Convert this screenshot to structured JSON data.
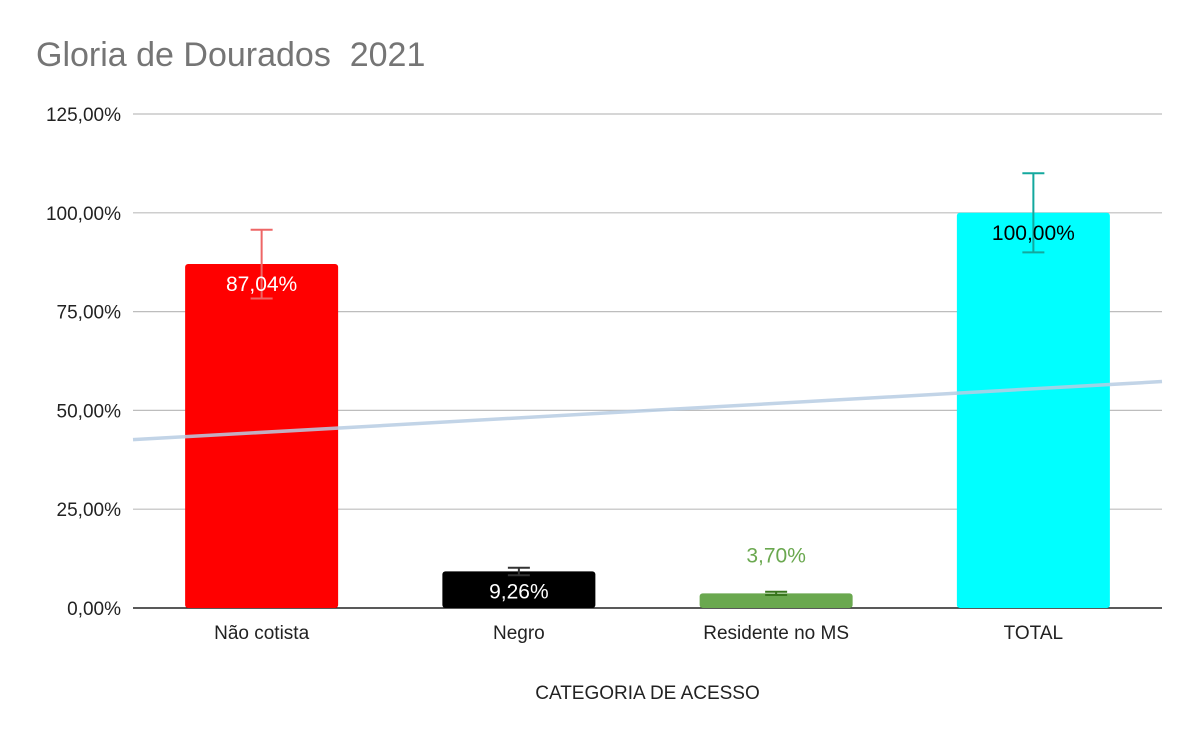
{
  "chart_data": {
    "type": "bar",
    "title": "Gloria de Dourados  2021",
    "xlabel": "CATEGORIA DE ACESSO",
    "ylabel": "",
    "categories": [
      "Não cotista",
      "Negro",
      "Residente no MS",
      "TOTAL"
    ],
    "values": [
      87.04,
      9.26,
      3.7,
      100.0
    ],
    "value_labels": [
      "87,04%",
      "9,26%",
      "3,70%",
      "100,00%"
    ],
    "bar_colors": [
      "#ff0000",
      "#000000",
      "#6aa84f",
      "#00ffff"
    ],
    "label_colors": [
      "#ffffff",
      "#ffffff",
      "#6aa84f",
      "#000000"
    ],
    "label_inside": [
      true,
      true,
      false,
      true
    ],
    "error_bars": [
      {
        "low": 78.3,
        "high": 95.7,
        "color": "#ee6666"
      },
      {
        "low": 8.3,
        "high": 10.2,
        "color": "#333333"
      },
      {
        "low": 3.3,
        "high": 4.1,
        "color": "#38761d"
      },
      {
        "low": 90.0,
        "high": 110.0,
        "color": "#13a89e"
      }
    ],
    "trendline": {
      "type": "linear",
      "start": 42.6,
      "end": 57.3,
      "color": "#b7cce3"
    },
    "ylim": [
      0,
      125
    ],
    "y_ticks": [
      0,
      25,
      50,
      75,
      100,
      125
    ],
    "y_tick_labels": [
      "0,00%",
      "25,00%",
      "50,00%",
      "75,00%",
      "100,00%",
      "125,00%"
    ],
    "grid": true,
    "legend": "none"
  }
}
